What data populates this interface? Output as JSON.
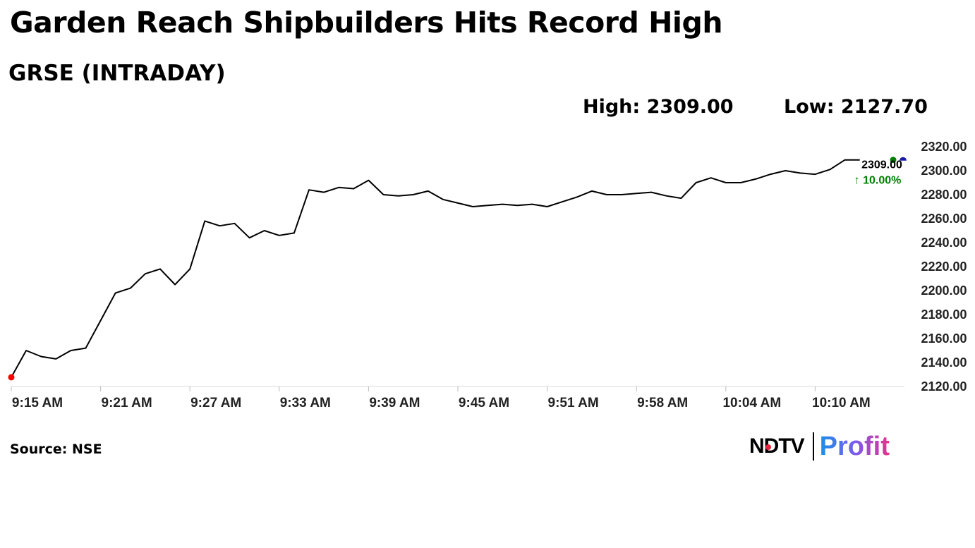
{
  "title": "Garden Reach Shipbuilders Hits Record High",
  "subtitle": "GRSE (INTRADAY)",
  "stats": {
    "high": "High: 2309.00",
    "low": "Low: 2127.70"
  },
  "source": "Source: NSE",
  "logo": {
    "ndtv": "NDTV",
    "profit": "Profit"
  },
  "chart_data": {
    "type": "line",
    "title": "GRSE (INTRADAY)",
    "xlabel": "",
    "ylabel": "",
    "x_ticks": [
      "9:15 AM",
      "9:21 AM",
      "9:27 AM",
      "9:33 AM",
      "9:39 AM",
      "9:45 AM",
      "9:51 AM",
      "9:58 AM",
      "10:04 AM",
      "10:10 AM"
    ],
    "y_ticks": [
      "2120.00",
      "2140.00",
      "2160.00",
      "2180.00",
      "2200.00",
      "2220.00",
      "2240.00",
      "2260.00",
      "2280.00",
      "2300.00",
      "2320.00"
    ],
    "ylim": [
      2120,
      2320
    ],
    "grid": false,
    "last_value_label": "2309.00",
    "change_label": "↑ 10.00%",
    "colors": {
      "line": "#000000",
      "start_marker": "#ff0000",
      "high_marker": "#008000",
      "low_marker_dot": "#1a1aa6",
      "change": "#008000"
    },
    "series": [
      {
        "x": [
          "9:15",
          "9:16",
          "9:17",
          "9:18",
          "9:19",
          "9:20",
          "9:21",
          "9:22",
          "9:23",
          "9:24",
          "9:25",
          "9:26",
          "9:27",
          "9:28",
          "9:29",
          "9:30",
          "9:31",
          "9:32",
          "9:33",
          "9:34",
          "9:35",
          "9:36",
          "9:37",
          "9:38",
          "9:39",
          "9:40",
          "9:41",
          "9:42",
          "9:43",
          "9:44",
          "9:45",
          "9:46",
          "9:47",
          "9:48",
          "9:49",
          "9:50",
          "9:51",
          "9:52",
          "9:53",
          "9:54",
          "9:55",
          "9:56",
          "9:57",
          "9:58",
          "9:59",
          "10:00",
          "10:01",
          "10:02",
          "10:03",
          "10:04",
          "10:05",
          "10:06",
          "10:07",
          "10:08",
          "10:09",
          "10:10",
          "10:11",
          "10:12"
        ],
        "y": [
          2127.7,
          2150,
          2145,
          2143,
          2150,
          2152,
          2175,
          2198,
          2202,
          2214,
          2218,
          2205,
          2218,
          2258,
          2254,
          2256,
          2244,
          2250,
          2246,
          2248,
          2284,
          2282,
          2286,
          2285,
          2292,
          2280,
          2279,
          2280,
          2283,
          2276,
          2273,
          2270,
          2271,
          2272,
          2271,
          2272,
          2270,
          2274,
          2278,
          2283,
          2280,
          2280,
          2281,
          2282,
          2279,
          2277,
          2290,
          2294,
          2290,
          2290,
          2293,
          2297,
          2300,
          2298,
          2297,
          2301,
          2309,
          2309
        ]
      }
    ]
  }
}
